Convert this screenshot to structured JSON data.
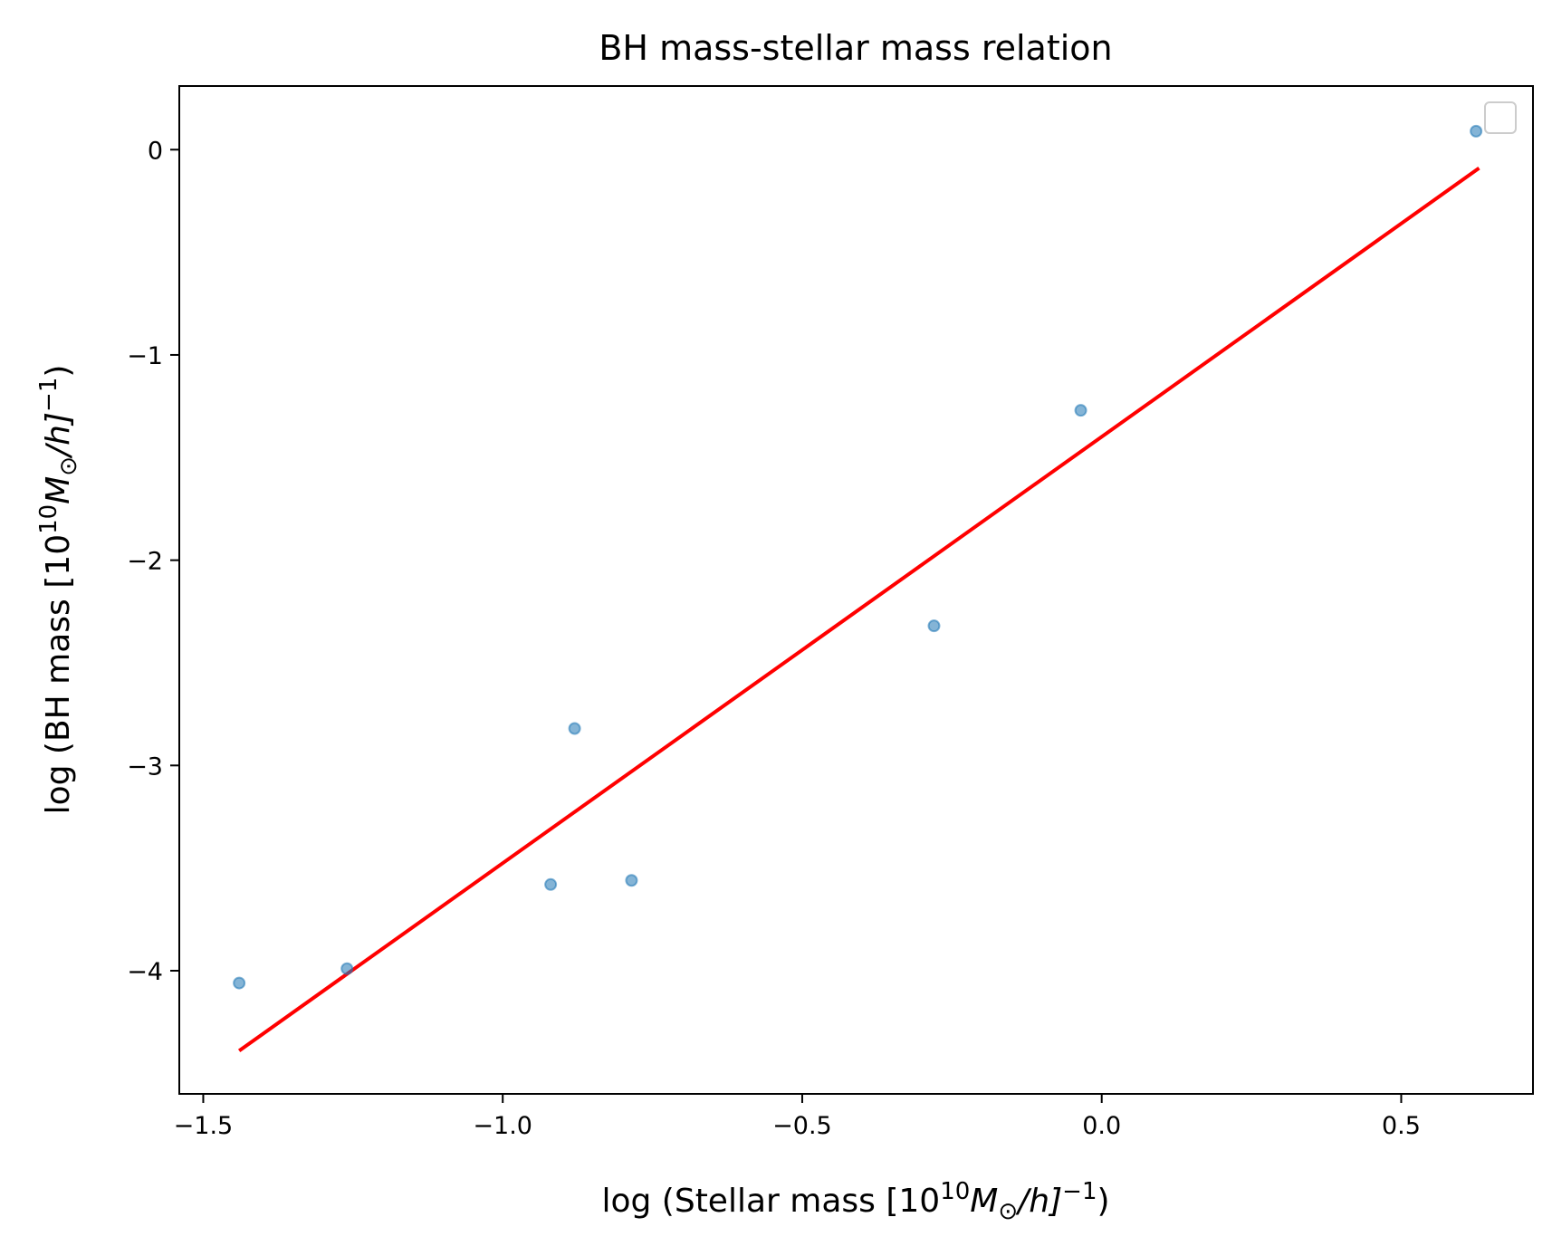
{
  "chart_data": {
    "type": "scatter",
    "title": "BH mass-stellar mass relation",
    "xlabel": {
      "pre": "log (Stellar mass [10",
      "exp": "10",
      "mid": "M",
      "sub": "⊙",
      "post": "/h]",
      "exp2": "−1",
      "end": ")"
    },
    "ylabel": {
      "pre": "log (BH mass [10",
      "exp": "10",
      "mid": "M",
      "sub": "⊙",
      "post": "/h]",
      "exp2": "−1",
      "end": ")"
    },
    "xlim": [
      -1.54,
      0.72
    ],
    "ylim": [
      -4.6,
      0.31
    ],
    "xticks": [
      -1.5,
      -1.0,
      -0.5,
      0.0,
      0.5
    ],
    "xtick_labels": [
      "−1.5",
      "−1.0",
      "−0.5",
      "0.0",
      "0.5"
    ],
    "yticks": [
      0,
      -1,
      -2,
      -3,
      -4
    ],
    "ytick_labels": [
      "0",
      "−1",
      "−2",
      "−3",
      "−4"
    ],
    "series": [
      {
        "type": "scatter",
        "color": "#1f77b4",
        "points": [
          {
            "x": -1.44,
            "y": -4.06
          },
          {
            "x": -1.26,
            "y": -3.99
          },
          {
            "x": -0.92,
            "y": -3.58
          },
          {
            "x": -0.88,
            "y": -2.82
          },
          {
            "x": -0.785,
            "y": -3.56
          },
          {
            "x": -0.28,
            "y": -2.32
          },
          {
            "x": -0.035,
            "y": -1.27
          },
          {
            "x": 0.625,
            "y": 0.09
          }
        ]
      },
      {
        "type": "line",
        "color": "#ff0000",
        "points": [
          {
            "x": -1.44,
            "y": -4.39
          },
          {
            "x": 0.63,
            "y": -0.09
          }
        ]
      }
    ],
    "legend": {
      "position": "top-right",
      "entries": []
    },
    "grid": false
  }
}
